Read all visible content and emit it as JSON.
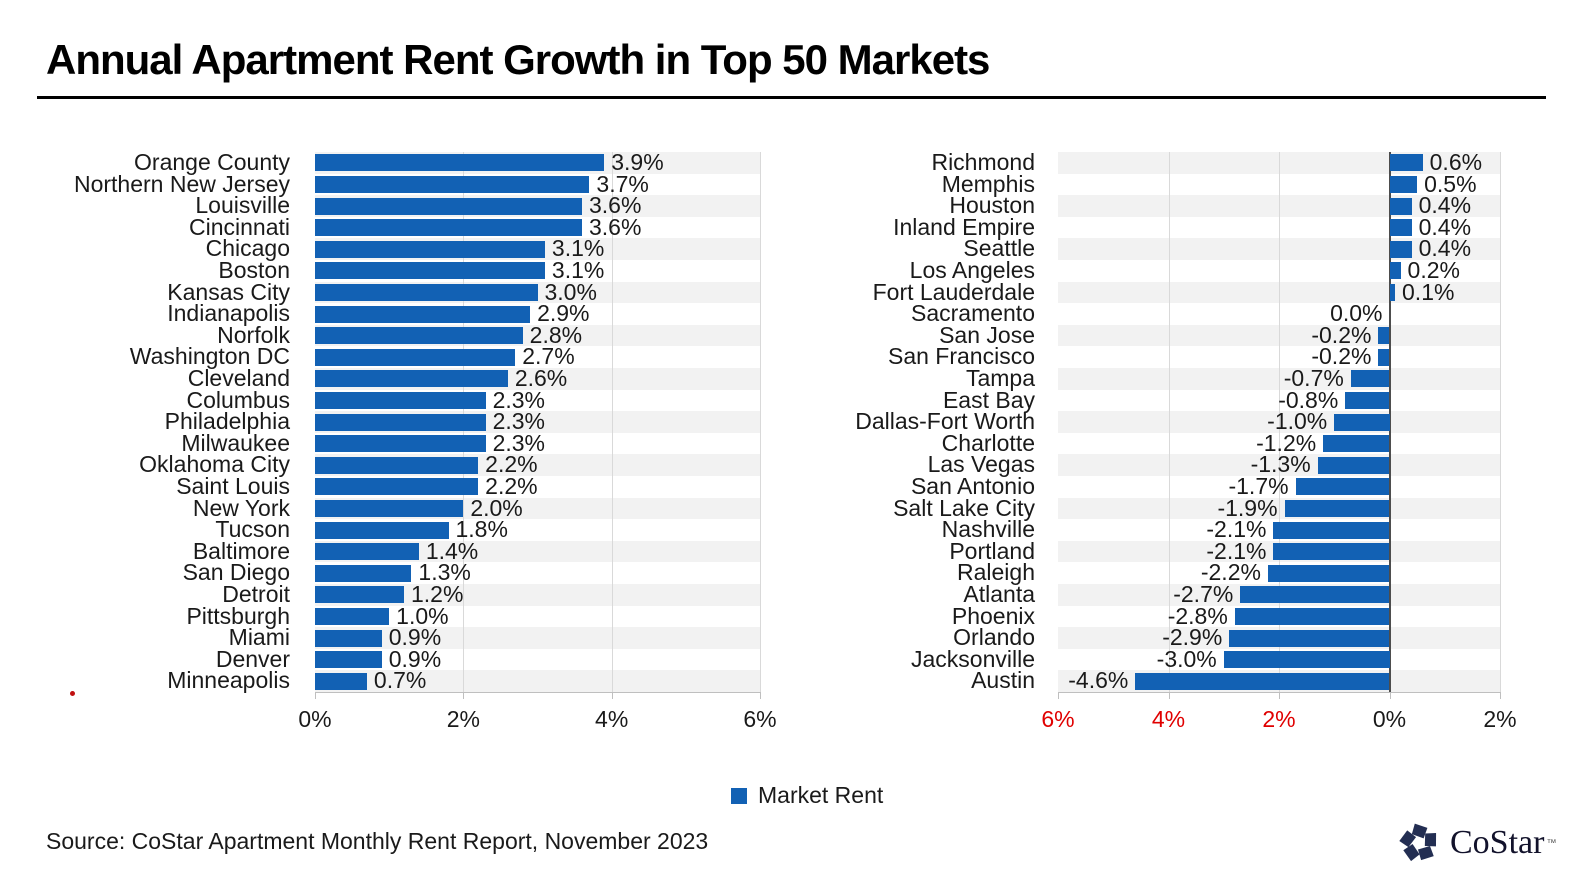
{
  "title": "Annual Apartment Rent Growth in Top 50 Markets",
  "source": "Source: CoStar Apartment Monthly Rent Report, November  2023",
  "legend": {
    "label": "Market Rent",
    "marker_color": "#1261b4"
  },
  "logo": {
    "text": "CoStar",
    "tm": "™"
  },
  "colors": {
    "bar": "#1261b4",
    "band": "#f2f2f2",
    "gridline": "#d9d9d9",
    "zero_line": "#4d4d4d",
    "axis_line": "#bfbfbf",
    "negative_tick": "#e00000"
  },
  "chart_data": [
    {
      "type": "bar",
      "orientation": "horizontal",
      "series_name": "Market Rent",
      "grid": true,
      "banding": true,
      "xlim": [
        0,
        6
      ],
      "categories": [
        "Orange County",
        "Northern New Jersey",
        "Louisville",
        "Cincinnati",
        "Chicago",
        "Boston",
        "Kansas City",
        "Indianapolis",
        "Norfolk",
        "Washington DC",
        "Cleveland",
        "Columbus",
        "Philadelphia",
        "Milwaukee",
        "Oklahoma City",
        "Saint Louis",
        "New York",
        "Tucson",
        "Baltimore",
        "San Diego",
        "Detroit",
        "Pittsburgh",
        "Miami",
        "Denver",
        "Minneapolis"
      ],
      "values": [
        3.9,
        3.7,
        3.6,
        3.6,
        3.1,
        3.1,
        3.0,
        2.9,
        2.8,
        2.7,
        2.6,
        2.3,
        2.3,
        2.3,
        2.2,
        2.2,
        2.0,
        1.8,
        1.4,
        1.3,
        1.2,
        1.0,
        0.9,
        0.9,
        0.7
      ],
      "value_labels": [
        "3.9%",
        "3.7%",
        "3.6%",
        "3.6%",
        "3.1%",
        "3.1%",
        "3.0%",
        "2.9%",
        "2.8%",
        "2.7%",
        "2.6%",
        "2.3%",
        "2.3%",
        "2.3%",
        "2.2%",
        "2.2%",
        "2.0%",
        "1.8%",
        "1.4%",
        "1.3%",
        "1.2%",
        "1.0%",
        "0.9%",
        "0.9%",
        "0.7%"
      ],
      "ticks": [
        {
          "label": "0%",
          "value": 0,
          "red": false
        },
        {
          "label": "2%",
          "value": 2,
          "red": false
        },
        {
          "label": "4%",
          "value": 4,
          "red": false
        },
        {
          "label": "6%",
          "value": 6,
          "red": false
        }
      ]
    },
    {
      "type": "bar",
      "orientation": "horizontal",
      "series_name": "Market Rent",
      "grid": true,
      "banding": true,
      "xlim": [
        -6,
        2
      ],
      "categories": [
        "Richmond",
        "Memphis",
        "Houston",
        "Inland Empire",
        "Seattle",
        "Los Angeles",
        "Fort Lauderdale",
        "Sacramento",
        "San Jose",
        "San Francisco",
        "Tampa",
        "East Bay",
        "Dallas-Fort Worth",
        "Charlotte",
        "Las Vegas",
        "San Antonio",
        "Salt Lake City",
        "Nashville",
        "Portland",
        "Raleigh",
        "Atlanta",
        "Phoenix",
        "Orlando",
        "Jacksonville",
        "Austin"
      ],
      "values": [
        0.6,
        0.5,
        0.4,
        0.4,
        0.4,
        0.2,
        0.1,
        0.0,
        -0.2,
        -0.2,
        -0.7,
        -0.8,
        -1.0,
        -1.2,
        -1.3,
        -1.7,
        -1.9,
        -2.1,
        -2.1,
        -2.2,
        -2.7,
        -2.8,
        -2.9,
        -3.0,
        -4.6
      ],
      "value_labels": [
        "0.6%",
        "0.5%",
        "0.4%",
        "0.4%",
        "0.4%",
        "0.2%",
        "0.1%",
        "0.0%",
        "-0.2%",
        "-0.2%",
        "-0.7%",
        "-0.8%",
        "-1.0%",
        "-1.2%",
        "-1.3%",
        "-1.7%",
        "-1.9%",
        "-2.1%",
        "-2.1%",
        "-2.2%",
        "-2.7%",
        "-2.8%",
        "-2.9%",
        "-3.0%",
        "-4.6%"
      ],
      "ticks": [
        {
          "label": "6%",
          "value": -6,
          "red": true
        },
        {
          "label": "4%",
          "value": -4,
          "red": true
        },
        {
          "label": "2%",
          "value": -2,
          "red": true
        },
        {
          "label": "0%",
          "value": 0,
          "red": false
        },
        {
          "label": "2%",
          "value": 2,
          "red": false
        }
      ]
    }
  ]
}
